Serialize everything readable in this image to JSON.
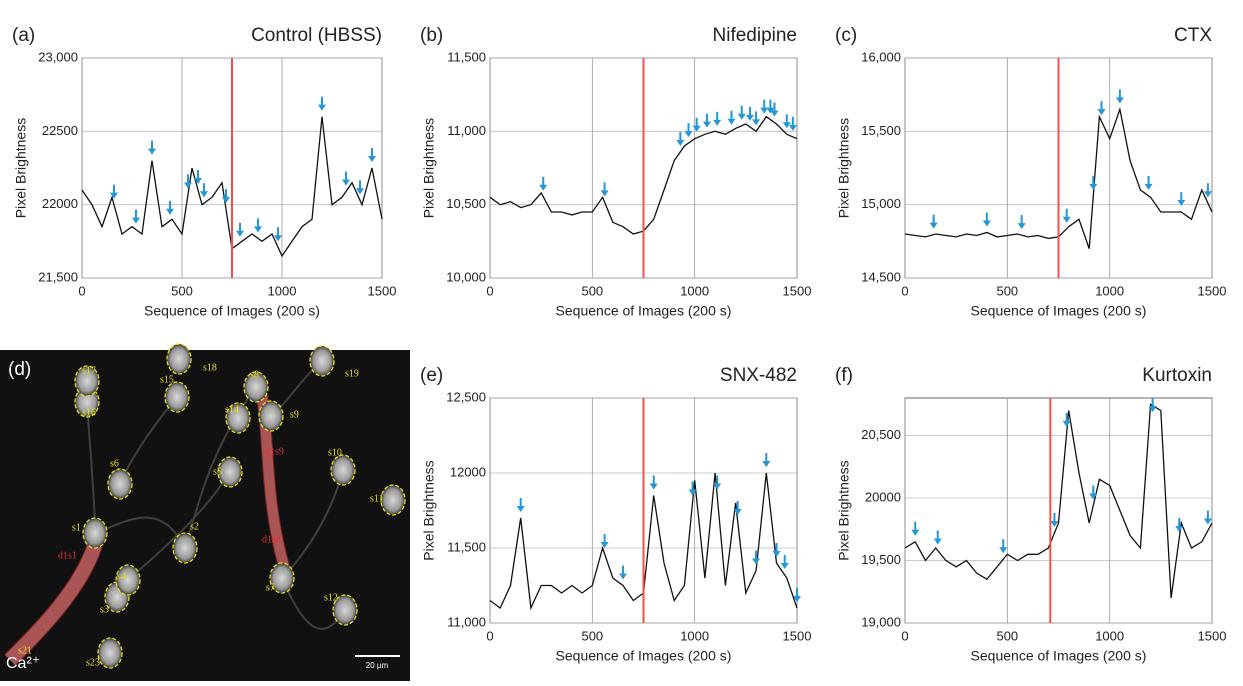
{
  "chart_data": [
    {
      "type": "line",
      "panel_label": "(a)",
      "title": "Control (HBSS)",
      "y_label": "Pixel Brightness",
      "x_label": "Sequence of Images (200 s)",
      "x": [
        0,
        50,
        100,
        150,
        200,
        250,
        300,
        350,
        400,
        450,
        500,
        550,
        600,
        650,
        700,
        750,
        800,
        850,
        900,
        950,
        1000,
        1050,
        1100,
        1150,
        1200,
        1250,
        1300,
        1350,
        1400,
        1450,
        1500
      ],
      "values": [
        22100,
        22000,
        21850,
        22050,
        21800,
        21850,
        21800,
        22300,
        21850,
        21900,
        21800,
        22250,
        22000,
        22050,
        22150,
        21700,
        21750,
        21800,
        21750,
        21800,
        21650,
        21750,
        21850,
        21900,
        22600,
        22000,
        22050,
        22150,
        22000,
        22250,
        21900
      ],
      "color": "#111111",
      "stimulus_x": 750,
      "stimulus_color": "#f0524a",
      "arrows_x": [
        160,
        270,
        350,
        440,
        530,
        580,
        610,
        720,
        790,
        880,
        980,
        1200,
        1320,
        1390,
        1450
      ],
      "arrow_color": "#2596d6",
      "xlim": [
        0,
        1500
      ],
      "xticks": [
        0,
        500,
        1000,
        1500
      ],
      "ylim": [
        21500,
        23000
      ],
      "yticks": [
        {
          "value": 21500,
          "label": "21,500"
        },
        22000,
        22500,
        {
          "value": 23000,
          "label": "23,000"
        }
      ],
      "grid": true
    },
    {
      "type": "line",
      "panel_label": "(b)",
      "title": "Nifedipine",
      "y_label": "Pixel Brightness",
      "x_label": "Sequence of Images (200 s)",
      "x": [
        0,
        50,
        100,
        150,
        200,
        250,
        300,
        350,
        400,
        450,
        500,
        550,
        600,
        650,
        700,
        750,
        800,
        850,
        900,
        950,
        1000,
        1050,
        1100,
        1150,
        1200,
        1250,
        1300,
        1350,
        1400,
        1450,
        1500
      ],
      "values": [
        10550,
        10500,
        10520,
        10480,
        10500,
        10580,
        10450,
        10450,
        10430,
        10450,
        10450,
        10550,
        10380,
        10350,
        10300,
        10320,
        10400,
        10600,
        10800,
        10900,
        10950,
        10980,
        11000,
        10980,
        11020,
        11050,
        11000,
        11100,
        11050,
        10980,
        10950
      ],
      "color": "#111111",
      "stimulus_x": 750,
      "stimulus_color": "#f0524a",
      "arrows_x": [
        260,
        560,
        930,
        970,
        1010,
        1060,
        1110,
        1180,
        1230,
        1270,
        1300,
        1340,
        1370,
        1390,
        1450,
        1480
      ],
      "arrow_color": "#2596d6",
      "xlim": [
        0,
        1500
      ],
      "xticks": [
        0,
        500,
        1000,
        1500
      ],
      "ylim": [
        10000,
        11500
      ],
      "yticks": [
        {
          "value": 10000,
          "label": "10,000"
        },
        {
          "value": 10500,
          "label": "10,500"
        },
        {
          "value": 11000,
          "label": "11,000"
        },
        {
          "value": 11500,
          "label": "11,500"
        }
      ],
      "grid": true
    },
    {
      "type": "line",
      "panel_label": "(c)",
      "title": "CTX",
      "y_label": "Pixel Brightness",
      "x_label": "Sequence of Images (200 s)",
      "x": [
        0,
        50,
        100,
        150,
        200,
        250,
        300,
        350,
        400,
        450,
        500,
        550,
        600,
        650,
        700,
        750,
        800,
        850,
        900,
        950,
        1000,
        1050,
        1100,
        1150,
        1200,
        1250,
        1300,
        1350,
        1400,
        1450,
        1500
      ],
      "values": [
        14800,
        14790,
        14780,
        14800,
        14790,
        14780,
        14800,
        14790,
        14810,
        14780,
        14790,
        14800,
        14780,
        14790,
        14770,
        14780,
        14850,
        14900,
        14700,
        15600,
        15450,
        15650,
        15300,
        15100,
        15050,
        14950,
        14950,
        14950,
        14900,
        15100,
        14950
      ],
      "color": "#111111",
      "stimulus_x": 750,
      "stimulus_color": "#f0524a",
      "arrows_x": [
        140,
        400,
        570,
        790,
        920,
        960,
        1050,
        1190,
        1350,
        1480
      ],
      "arrow_color": "#2596d6",
      "xlim": [
        0,
        1500
      ],
      "xticks": [
        0,
        500,
        1000,
        1500
      ],
      "ylim": [
        14500,
        16000
      ],
      "yticks": [
        {
          "value": 14500,
          "label": "14,500"
        },
        {
          "value": 15000,
          "label": "15,000"
        },
        {
          "value": 15500,
          "label": "15,500"
        },
        {
          "value": 16000,
          "label": "16,000"
        }
      ],
      "grid": true
    },
    {
      "type": "line",
      "panel_label": "(e)",
      "title": "SNX-482",
      "y_label": "Pixel Brightness",
      "x_label": "Sequence of Images (200 s)",
      "x": [
        0,
        50,
        100,
        150,
        200,
        250,
        300,
        350,
        400,
        450,
        500,
        550,
        600,
        650,
        700,
        750,
        800,
        850,
        900,
        950,
        1000,
        1050,
        1100,
        1150,
        1200,
        1250,
        1300,
        1350,
        1400,
        1450,
        1500
      ],
      "values": [
        11150,
        11100,
        11250,
        11700,
        11100,
        11250,
        11250,
        11200,
        11250,
        11200,
        11250,
        11500,
        11300,
        11250,
        11150,
        11200,
        11850,
        11400,
        11150,
        11250,
        11950,
        11300,
        12000,
        11250,
        11800,
        11200,
        11350,
        12000,
        11400,
        11300,
        11100
      ],
      "color": "#111111",
      "stimulus_x": 750,
      "stimulus_color": "#f0524a",
      "arrows_x": [
        150,
        560,
        650,
        800,
        990,
        1110,
        1210,
        1300,
        1350,
        1400,
        1440,
        1500
      ],
      "arrow_color": "#2596d6",
      "xlim": [
        0,
        1500
      ],
      "xticks": [
        0,
        500,
        1000,
        1500
      ],
      "ylim": [
        11000,
        12500
      ],
      "yticks": [
        {
          "value": 11000,
          "label": "11,000"
        },
        {
          "value": 11500,
          "label": "11,500"
        },
        12000,
        {
          "value": 12500,
          "label": "12,500"
        }
      ],
      "grid": true
    },
    {
      "type": "line",
      "panel_label": "(f)",
      "title": "Kurtoxin",
      "y_label": "Pixel Brightness",
      "x_label": "Sequence of Images (200 s)",
      "x": [
        0,
        50,
        100,
        150,
        200,
        250,
        300,
        350,
        400,
        450,
        500,
        550,
        600,
        650,
        700,
        750,
        800,
        850,
        900,
        950,
        1000,
        1050,
        1100,
        1150,
        1200,
        1250,
        1300,
        1350,
        1400,
        1450,
        1500
      ],
      "values": [
        19600,
        19650,
        19500,
        19600,
        19500,
        19450,
        19500,
        19400,
        19350,
        19450,
        19550,
        19500,
        19550,
        19550,
        19600,
        19800,
        20700,
        20200,
        19800,
        20150,
        20100,
        19900,
        19700,
        19600,
        20750,
        20700,
        19200,
        19800,
        19600,
        19650,
        19800
      ],
      "color": "#111111",
      "stimulus_x": 710,
      "stimulus_color": "#f0524a",
      "arrows_x": [
        50,
        160,
        480,
        730,
        790,
        920,
        1210,
        1340,
        1480
      ],
      "arrow_color": "#2596d6",
      "xlim": [
        0,
        1500
      ],
      "xticks": [
        0,
        500,
        1000,
        1500
      ],
      "ylim": [
        19000,
        20800
      ],
      "yticks": [
        {
          "value": 19000,
          "label": "19,000"
        },
        {
          "value": 19500,
          "label": "19,500"
        },
        20000,
        {
          "value": 20500,
          "label": "20,500"
        }
      ],
      "grid": true
    }
  ],
  "image_panel": {
    "panel_label": "(d)",
    "stain": "Ca²⁺",
    "scale_bar": "20 µm",
    "cells": [
      "s1",
      "s2",
      "s3",
      "s4",
      "s5",
      "s6",
      "s7",
      "s8",
      "s9",
      "s10",
      "s11",
      "s12",
      "s14",
      "s15",
      "s16",
      "s17",
      "s18",
      "s19",
      "s21",
      "s23"
    ],
    "dendrites": [
      "d1s1",
      "d1s9",
      "d1s8"
    ]
  }
}
